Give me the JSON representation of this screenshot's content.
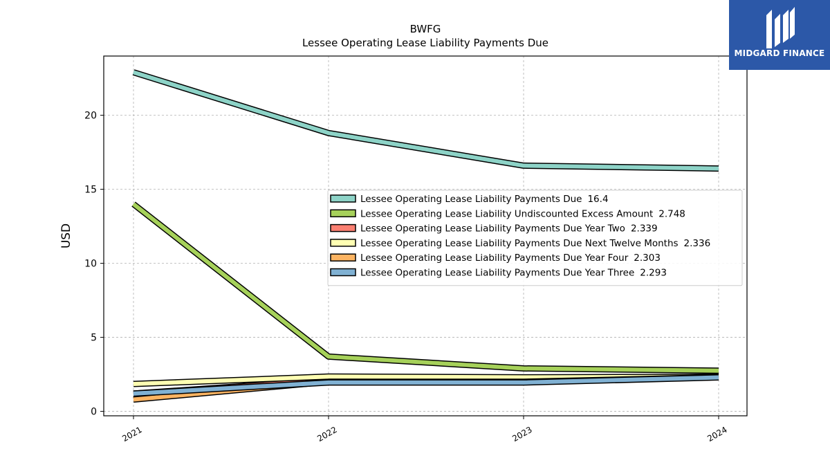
{
  "logo": {
    "text": "MIDGARD FINANCE",
    "background": "#2c58a8"
  },
  "chart_data": {
    "type": "line",
    "title": "BWFG",
    "subtitle": "Lessee Operating Lease Liability Payments Due",
    "ylabel": "USD",
    "xlabel": "",
    "categories": [
      "2021",
      "2022",
      "2023",
      "2024"
    ],
    "ylim": [
      -0.3,
      24
    ],
    "yticks": [
      0,
      5,
      10,
      15,
      20
    ],
    "grid": true,
    "legend_position": "center-right",
    "series": [
      {
        "name": "Lessee Operating Lease Liability Payments Due",
        "legend_value": "16.4",
        "color": "#8dd3c7",
        "values": [
          22.9,
          18.8,
          16.6,
          16.4
        ]
      },
      {
        "name": "Lessee Operating Lease Liability Undiscounted Excess Amount",
        "legend_value": "2.748",
        "color": "#a6d15a",
        "values": [
          14.0,
          3.7,
          2.9,
          2.748
        ]
      },
      {
        "name": "Lessee Operating Lease Liability Payments Due Year Two",
        "legend_value": "2.339",
        "color": "#fb8072",
        "values": [
          1.2,
          2.1,
          2.2,
          2.339
        ]
      },
      {
        "name": "Lessee Operating Lease Liability Payments Due Next Twelve Months",
        "legend_value": "2.336",
        "color": "#ffffb3",
        "values": [
          1.85,
          2.35,
          2.3,
          2.336
        ]
      },
      {
        "name": "Lessee Operating Lease Liability Payments Due Year Four",
        "legend_value": "2.303",
        "color": "#fdb462",
        "values": [
          0.8,
          2.0,
          2.0,
          2.303
        ]
      },
      {
        "name": "Lessee Operating Lease Liability Payments Due Year Three",
        "legend_value": "2.293",
        "color": "#80b1d3",
        "values": [
          1.2,
          1.95,
          1.95,
          2.293
        ]
      }
    ]
  }
}
